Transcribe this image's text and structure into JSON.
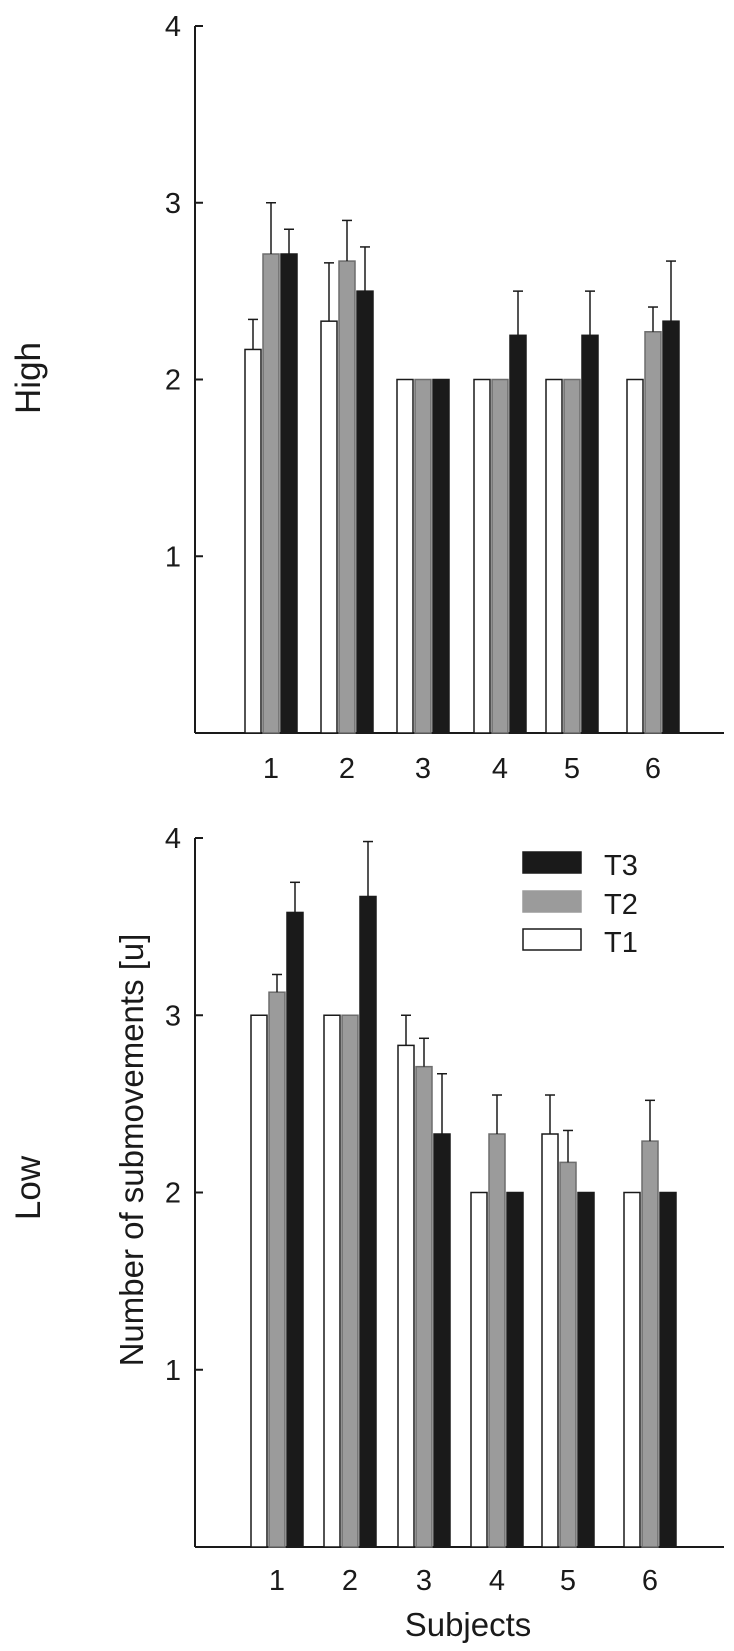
{
  "figure": {
    "xlabel": "Subjects",
    "ylabel": "Number of submovements [u]"
  },
  "legend": {
    "entries": [
      {
        "label": "T3",
        "color": "#1a1a1a"
      },
      {
        "label": "T2",
        "color": "#9b9b9b"
      },
      {
        "label": "T1",
        "color": "#ffffff"
      }
    ],
    "position": "top-right of bottom panel"
  },
  "chart_data": [
    {
      "type": "bar",
      "panel_label": "High",
      "categories": [
        "1",
        "2",
        "3",
        "4",
        "5",
        "6"
      ],
      "yticks": [
        "1",
        "2",
        "3",
        "4"
      ],
      "ylim": [
        0,
        4
      ],
      "grid": false,
      "series": [
        {
          "name": "T1",
          "color": "#ffffff",
          "values": [
            2.17,
            2.33,
            2.0,
            2.0,
            2.0,
            2.0
          ],
          "errors": [
            0.17,
            0.33,
            0,
            0,
            0,
            0
          ]
        },
        {
          "name": "T2",
          "color": "#9b9b9b",
          "values": [
            2.71,
            2.67,
            2.0,
            2.0,
            2.0,
            2.27
          ],
          "errors": [
            0.29,
            0.23,
            0,
            0,
            0,
            0.14
          ]
        },
        {
          "name": "T3",
          "color": "#1a1a1a",
          "values": [
            2.71,
            2.5,
            2.0,
            2.25,
            2.25,
            2.33
          ],
          "errors": [
            0.14,
            0.25,
            0,
            0.25,
            0.25,
            0.34
          ]
        }
      ]
    },
    {
      "type": "bar",
      "panel_label": "Low",
      "categories": [
        "1",
        "2",
        "3",
        "4",
        "5",
        "6"
      ],
      "yticks": [
        "1",
        "2",
        "3",
        "4"
      ],
      "ylim": [
        0,
        4
      ],
      "grid": false,
      "series": [
        {
          "name": "T1",
          "color": "#ffffff",
          "values": [
            3.0,
            3.0,
            2.83,
            2.0,
            2.33,
            2.0
          ],
          "errors": [
            0,
            0,
            0.17,
            0,
            0.22,
            0
          ]
        },
        {
          "name": "T2",
          "color": "#9b9b9b",
          "values": [
            3.13,
            3.0,
            2.71,
            2.33,
            2.17,
            2.29
          ],
          "errors": [
            0.1,
            0,
            0.16,
            0.22,
            0.18,
            0.23
          ]
        },
        {
          "name": "T3",
          "color": "#1a1a1a",
          "values": [
            3.58,
            3.67,
            2.33,
            2.0,
            2.0,
            2.0
          ],
          "errors": [
            0.17,
            0.31,
            0.34,
            0,
            0,
            0
          ]
        }
      ]
    }
  ]
}
